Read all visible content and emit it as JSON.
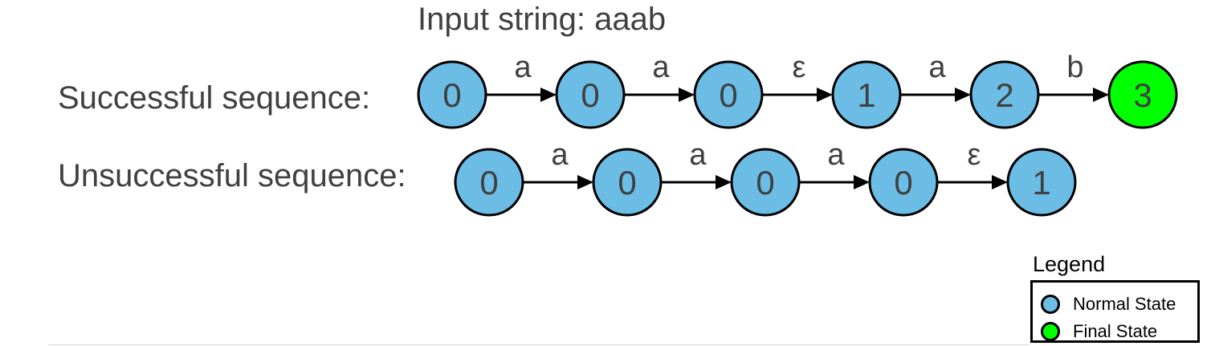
{
  "title": "Input string: aaab",
  "colors": {
    "normal_state": "#6bbde6",
    "final_state": "#00ff00",
    "stroke": "#000000",
    "text": "#404040"
  },
  "sequences": [
    {
      "label": "Successful sequence:",
      "states": [
        {
          "label": "0",
          "kind": "normal"
        },
        {
          "label": "0",
          "kind": "normal"
        },
        {
          "label": "0",
          "kind": "normal"
        },
        {
          "label": "1",
          "kind": "normal"
        },
        {
          "label": "2",
          "kind": "normal"
        },
        {
          "label": "3",
          "kind": "final"
        }
      ],
      "transitions": [
        "a",
        "a",
        "ε",
        "a",
        "b"
      ]
    },
    {
      "label": "Unsuccessful sequence:",
      "states": [
        {
          "label": "0",
          "kind": "normal"
        },
        {
          "label": "0",
          "kind": "normal"
        },
        {
          "label": "0",
          "kind": "normal"
        },
        {
          "label": "0",
          "kind": "normal"
        },
        {
          "label": "1",
          "kind": "normal"
        }
      ],
      "transitions": [
        "a",
        "a",
        "a",
        "ε"
      ]
    }
  ],
  "legend": {
    "title": "Legend",
    "items": [
      {
        "label": "Normal State",
        "kind": "normal"
      },
      {
        "label": "Final State",
        "kind": "final"
      }
    ]
  }
}
